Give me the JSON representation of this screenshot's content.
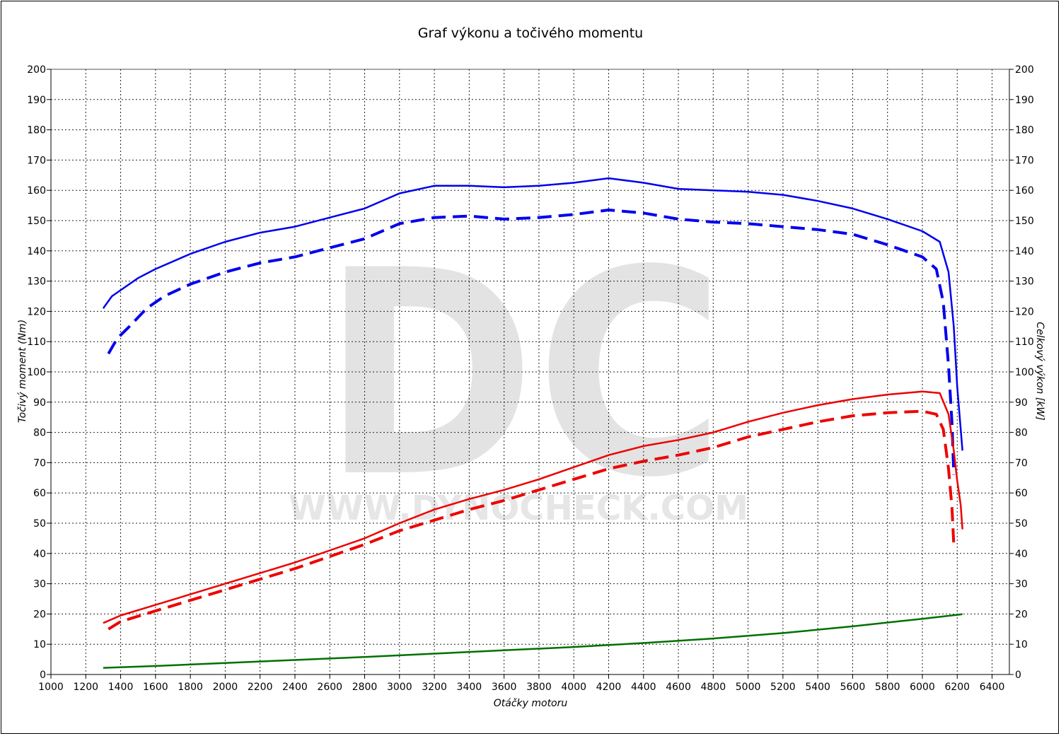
{
  "chart_data": {
    "type": "line",
    "title": "Graf výkonu a točivého momentu",
    "xlabel": "Otáčky motoru",
    "ylabel_left": "Točivý moment (Nm)",
    "ylabel_right": "Celkový výkon [kW]",
    "xlim": [
      1000,
      6500
    ],
    "ylim": [
      0,
      200
    ],
    "x_ticks": [
      1000,
      1200,
      1400,
      1600,
      1800,
      2000,
      2200,
      2400,
      2600,
      2800,
      3000,
      3200,
      3400,
      3600,
      3800,
      4000,
      4200,
      4400,
      4600,
      4800,
      5000,
      5200,
      5400,
      5600,
      5800,
      6000,
      6200,
      6400
    ],
    "y_ticks": [
      0,
      10,
      20,
      30,
      40,
      50,
      60,
      70,
      80,
      90,
      100,
      110,
      120,
      130,
      140,
      150,
      160,
      170,
      180,
      190,
      200
    ],
    "grid": true,
    "watermark": {
      "logo": "DC",
      "url": "WWW.DYNOCHECK.COM"
    },
    "series": [
      {
        "color": "#0000ee",
        "style": "solid",
        "x": [
          1300,
          1350,
          1400,
          1500,
          1600,
          1800,
          2000,
          2200,
          2400,
          2600,
          2800,
          3000,
          3200,
          3400,
          3600,
          3800,
          4000,
          4200,
          4400,
          4600,
          4800,
          5000,
          5200,
          5400,
          5600,
          5800,
          6000,
          6100,
          6150,
          6180,
          6200,
          6230
        ],
        "y": [
          121,
          125,
          127,
          131,
          134,
          139,
          143,
          146,
          148,
          151,
          154,
          159,
          161.5,
          161.5,
          161,
          161.5,
          162.5,
          164,
          162.5,
          160.5,
          160,
          159.5,
          158.5,
          156.5,
          154,
          150.5,
          146.5,
          143,
          133,
          115,
          95,
          74
        ]
      },
      {
        "color": "#0000ee",
        "style": "dashed",
        "x": [
          1330,
          1380,
          1450,
          1550,
          1650,
          1800,
          2000,
          2200,
          2400,
          2600,
          2800,
          3000,
          3200,
          3400,
          3600,
          3800,
          4000,
          4200,
          4400,
          4600,
          4800,
          5000,
          5200,
          5400,
          5600,
          5800,
          6000,
          6080,
          6120,
          6150,
          6170,
          6180
        ],
        "y": [
          106,
          111,
          115,
          121,
          125,
          129,
          133,
          136,
          138,
          141,
          144,
          149,
          151,
          151.5,
          150.5,
          151,
          152,
          153.5,
          152.5,
          150.5,
          149.5,
          149,
          148,
          147,
          145.5,
          142,
          138,
          134,
          123,
          102,
          83,
          66
        ]
      },
      {
        "color": "#ee0000",
        "style": "solid",
        "x": [
          1300,
          1400,
          1600,
          1800,
          2000,
          2200,
          2400,
          2600,
          2800,
          3000,
          3200,
          3400,
          3600,
          3800,
          4000,
          4200,
          4400,
          4600,
          4800,
          5000,
          5200,
          5400,
          5600,
          5800,
          6000,
          6100,
          6150,
          6180,
          6200,
          6220,
          6230
        ],
        "y": [
          17,
          19.5,
          23,
          26.5,
          30,
          33.5,
          37,
          41,
          45,
          50,
          54.5,
          58,
          61,
          64.5,
          68.5,
          72.5,
          75.5,
          77.5,
          80,
          83.5,
          86.5,
          89,
          91,
          92.5,
          93.5,
          93,
          86,
          74,
          64,
          56,
          48
        ]
      },
      {
        "color": "#ee0000",
        "style": "dashed",
        "x": [
          1330,
          1400,
          1600,
          1800,
          2000,
          2200,
          2400,
          2600,
          2800,
          3000,
          3200,
          3400,
          3600,
          3800,
          4000,
          4200,
          4400,
          4600,
          4800,
          5000,
          5200,
          5400,
          5600,
          5800,
          6000,
          6080,
          6120,
          6150,
          6170,
          6180
        ],
        "y": [
          15,
          17.5,
          21,
          24.5,
          28,
          31.5,
          35,
          39,
          43,
          47.5,
          51,
          54.5,
          57.5,
          61,
          64.5,
          68,
          70.5,
          72.5,
          75,
          78.5,
          81,
          83.5,
          85.5,
          86.5,
          87,
          86,
          81,
          68,
          55,
          43
        ]
      },
      {
        "color": "#007000",
        "style": "solid",
        "x": [
          1300,
          1600,
          2000,
          2400,
          2800,
          3200,
          3600,
          4000,
          4400,
          4800,
          5200,
          5600,
          6000,
          6230
        ],
        "y": [
          2.2,
          2.8,
          3.8,
          4.8,
          5.8,
          6.9,
          8.0,
          9.1,
          10.4,
          11.9,
          13.7,
          15.9,
          18.4,
          19.9
        ]
      }
    ]
  }
}
